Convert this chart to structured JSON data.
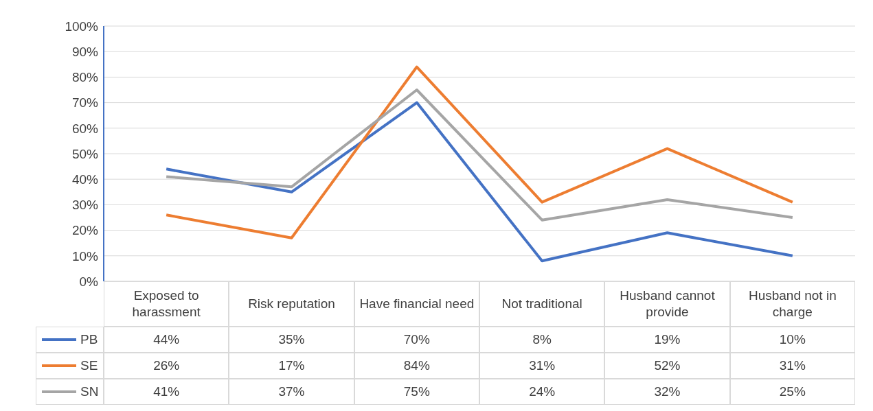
{
  "chart_data": {
    "type": "line",
    "categories": [
      "Exposed to harassment",
      "Risk reputation",
      "Have financial need",
      "Not traditional",
      "Husband cannot provide",
      "Husband not in charge"
    ],
    "series": [
      {
        "name": "PB",
        "color": "#4472c4",
        "values": [
          44,
          35,
          70,
          8,
          19,
          10
        ],
        "value_labels": [
          "44%",
          "35%",
          "70%",
          "8%",
          "19%",
          "10%"
        ]
      },
      {
        "name": "SE",
        "color": "#ed7d31",
        "values": [
          26,
          17,
          84,
          31,
          52,
          31
        ],
        "value_labels": [
          "26%",
          "17%",
          "84%",
          "31%",
          "52%",
          "31%"
        ]
      },
      {
        "name": "SN",
        "color": "#a5a5a5",
        "values": [
          41,
          37,
          75,
          24,
          32,
          25
        ],
        "value_labels": [
          "41%",
          "37%",
          "75%",
          "24%",
          "32%",
          "25%"
        ]
      }
    ],
    "ylim": [
      0,
      100
    ],
    "yticks": [
      {
        "value": 0,
        "label": "0%"
      },
      {
        "value": 10,
        "label": "10%"
      },
      {
        "value": 20,
        "label": "20%"
      },
      {
        "value": 30,
        "label": "30%"
      },
      {
        "value": 40,
        "label": "40%"
      },
      {
        "value": 50,
        "label": "50%"
      },
      {
        "value": 60,
        "label": "60%"
      },
      {
        "value": 70,
        "label": "70%"
      },
      {
        "value": 80,
        "label": "80%"
      },
      {
        "value": 90,
        "label": "90%"
      },
      {
        "value": 100,
        "label": "100%"
      }
    ],
    "grid": "y",
    "legend": "bottom",
    "marker": "none"
  }
}
